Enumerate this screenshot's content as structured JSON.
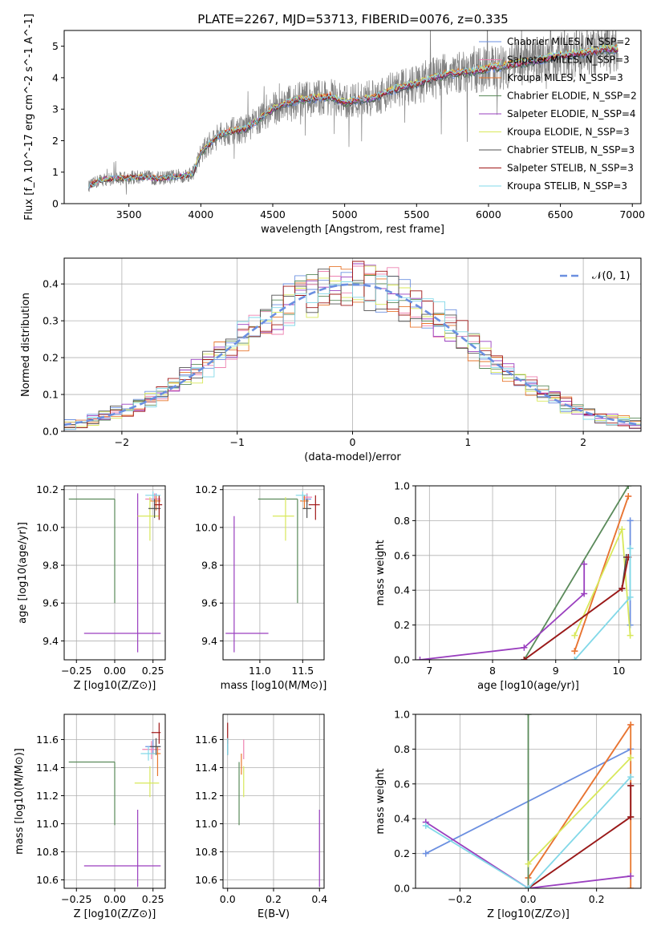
{
  "figure": {
    "title": "PLATE=2267, MJD=53713, FIBERID=0076, z=0.335"
  },
  "series_styles": [
    {
      "name": "Chabrier MILES, N_SSP=2",
      "color": "#6b8fe0"
    },
    {
      "name": "Salpeter MILES, N_SSP=3",
      "color": "#ee82b0"
    },
    {
      "name": "Kroupa MILES, N_SSP=3",
      "color": "#e8772e"
    },
    {
      "name": "Chabrier ELODIE, N_SSP=2",
      "color": "#5a8a5a"
    },
    {
      "name": "Salpeter ELODIE, N_SSP=4",
      "color": "#9a3fbf"
    },
    {
      "name": "Kroupa ELODIE, N_SSP=3",
      "color": "#d8e85a"
    },
    {
      "name": "Chabrier STELIB, N_SSP=3",
      "color": "#505050"
    },
    {
      "name": "Salpeter STELIB, N_SSP=3",
      "color": "#a01818"
    },
    {
      "name": "Kroupa STELIB, N_SSP=3",
      "color": "#82d8e8"
    }
  ],
  "chart_data": [
    {
      "id": "spectrum",
      "type": "line",
      "title": "PLATE=2267, MJD=53713, FIBERID=0076, z=0.335",
      "xlabel": "wavelength [Angstrom, rest frame]",
      "ylabel": "Flux [f_λ 10^-17 erg cm^-2 s^-1 A^-1]",
      "xlim": [
        3050,
        7060
      ],
      "ylim": [
        0,
        5.5
      ],
      "xticks": [
        3500,
        4000,
        4500,
        5000,
        5500,
        6000,
        6500,
        7000
      ],
      "yticks": [
        0,
        1,
        2,
        3,
        4,
        5
      ],
      "legend": "right",
      "data_color": "#808080",
      "model_shape": {
        "x": [
          3220,
          3300,
          3400,
          3500,
          3600,
          3700,
          3800,
          3900,
          3950,
          4000,
          4100,
          4200,
          4300,
          4400,
          4500,
          4600,
          4700,
          4800,
          4900,
          5000,
          5100,
          5200,
          5300,
          5400,
          5500,
          5600,
          5700,
          5800,
          5900,
          6000,
          6100,
          6200,
          6300,
          6400,
          6500,
          6600,
          6700,
          6800
        ],
        "y": [
          0.55,
          0.75,
          0.8,
          0.82,
          0.85,
          0.8,
          0.85,
          0.9,
          1.0,
          1.6,
          2.1,
          2.3,
          2.35,
          2.65,
          3.0,
          3.2,
          3.3,
          3.35,
          3.4,
          3.2,
          3.3,
          3.35,
          3.55,
          3.7,
          3.8,
          3.95,
          4.1,
          4.15,
          4.2,
          4.3,
          4.35,
          4.45,
          4.5,
          4.6,
          4.7,
          4.75,
          4.8,
          4.9
        ]
      }
    },
    {
      "id": "residuals",
      "type": "histogram",
      "xlabel": "(data-model)/error",
      "ylabel": "Normed distribution",
      "xlim": [
        -2.5,
        2.5
      ],
      "ylim": [
        0,
        0.47
      ],
      "xticks": [
        -2,
        -1,
        0,
        1,
        2
      ],
      "xticklabels": [
        "−2",
        "−1",
        "0",
        "1",
        "2"
      ],
      "yticks": [
        0.0,
        0.1,
        0.2,
        0.3,
        0.4
      ],
      "yticklabels": [
        "0.0",
        "0.1",
        "0.2",
        "0.3",
        "0.4"
      ],
      "grid": true,
      "legend": "top-right",
      "reference_curve": {
        "name": "𝒩(0, 1)",
        "color": "#6b8fe0",
        "style": "dashed"
      },
      "bin_width": 0.1
    },
    {
      "id": "age-vs-Z",
      "type": "scatter",
      "xlabel": "Z [log10(Z/Z⊙)]",
      "ylabel": "age [log10(age/yr)]",
      "xlim": [
        -0.33,
        0.33
      ],
      "ylim": [
        9.3,
        10.22
      ],
      "xticks": [
        -0.25,
        0.0,
        0.25
      ],
      "xticklabels": [
        "−0.25",
        "0.00",
        "0.25"
      ],
      "yticks": [
        9.4,
        9.6,
        9.8,
        10.0,
        10.2
      ],
      "yticklabels": [
        "9.4",
        "9.6",
        "9.8",
        "10.0",
        "10.2"
      ],
      "grid": true,
      "points": [
        {
          "series": 0,
          "x": 0.27,
          "y": 10.15,
          "xerr": [
            0.03,
            0.03
          ],
          "yerr": [
            0.03,
            0.03
          ]
        },
        {
          "series": 1,
          "x": 0.26,
          "y": 10.15,
          "xerr": [
            0.06,
            0.04
          ],
          "yerr": [
            0.04,
            0.03
          ]
        },
        {
          "series": 2,
          "x": 0.27,
          "y": 10.14,
          "xerr": [
            0.04,
            0.03
          ],
          "yerr": [
            0.05,
            0.03
          ]
        },
        {
          "series": 3,
          "x": 0.0,
          "y": 10.15,
          "xerr": [
            0.3,
            0.0
          ],
          "yerr": [
            0.55,
            0.0
          ]
        },
        {
          "series": 4,
          "x": 0.15,
          "y": 9.44,
          "xerr": [
            0.35,
            0.15
          ],
          "yerr": [
            0.1,
            0.74
          ]
        },
        {
          "series": 5,
          "x": 0.23,
          "y": 10.06,
          "xerr": [
            0.08,
            0.06
          ],
          "yerr": [
            0.13,
            0.1
          ]
        },
        {
          "series": 6,
          "x": 0.26,
          "y": 10.1,
          "xerr": [
            0.04,
            0.04
          ],
          "yerr": [
            0.05,
            0.05
          ]
        },
        {
          "series": 7,
          "x": 0.29,
          "y": 10.12,
          "xerr": [
            0.03,
            0.02
          ],
          "yerr": [
            0.08,
            0.05
          ]
        },
        {
          "series": 8,
          "x": 0.25,
          "y": 10.17,
          "xerr": [
            0.05,
            0.05
          ],
          "yerr": [
            0.03,
            0.02
          ]
        }
      ]
    },
    {
      "id": "age-vs-mass",
      "type": "scatter",
      "xlabel": "mass [log10(M/M⊙)]",
      "ylabel": "",
      "xlim": [
        10.57,
        11.75
      ],
      "ylim": [
        9.3,
        10.22
      ],
      "xticks": [
        11.0,
        11.5
      ],
      "xticklabels": [
        "11.0",
        "11.5"
      ],
      "yticks": [
        9.4,
        9.6,
        9.8,
        10.0,
        10.2
      ],
      "yticklabels": [
        "9.4",
        "9.6",
        "9.8",
        "10.0",
        "10.2"
      ],
      "grid": true,
      "points": [
        {
          "series": 0,
          "x": 11.55,
          "y": 10.15,
          "xerr": [
            0.05,
            0.05
          ],
          "yerr": [
            0.03,
            0.03
          ]
        },
        {
          "series": 1,
          "x": 11.55,
          "y": 10.16,
          "xerr": [
            0.05,
            0.06
          ],
          "yerr": [
            0.03,
            0.02
          ]
        },
        {
          "series": 2,
          "x": 11.52,
          "y": 10.14,
          "xerr": [
            0.05,
            0.05
          ],
          "yerr": [
            0.04,
            0.03
          ]
        },
        {
          "series": 3,
          "x": 11.44,
          "y": 10.15,
          "xerr": [
            0.46,
            0.0
          ],
          "yerr": [
            0.55,
            0.0
          ]
        },
        {
          "series": 4,
          "x": 10.7,
          "y": 9.44,
          "xerr": [
            0.1,
            0.4
          ],
          "yerr": [
            0.1,
            0.62
          ]
        },
        {
          "series": 5,
          "x": 11.3,
          "y": 10.06,
          "xerr": [
            0.15,
            0.1
          ],
          "yerr": [
            0.13,
            0.1
          ]
        },
        {
          "series": 6,
          "x": 11.55,
          "y": 10.1,
          "xerr": [
            0.05,
            0.05
          ],
          "yerr": [
            0.05,
            0.05
          ]
        },
        {
          "series": 7,
          "x": 11.65,
          "y": 10.12,
          "xerr": [
            0.08,
            0.05
          ],
          "yerr": [
            0.08,
            0.05
          ]
        },
        {
          "series": 8,
          "x": 11.5,
          "y": 10.17,
          "xerr": [
            0.08,
            0.06
          ],
          "yerr": [
            0.03,
            0.02
          ]
        }
      ]
    },
    {
      "id": "weight-vs-age",
      "type": "line",
      "xlabel": "age [log10(age/yr)]",
      "ylabel": "mass weight",
      "xlim": [
        6.78,
        10.35
      ],
      "ylim": [
        0.0,
        1.0
      ],
      "xticks": [
        7,
        8,
        9,
        10
      ],
      "xticklabels": [
        "7",
        "8",
        "9",
        "10"
      ],
      "yticks": [
        0.0,
        0.2,
        0.4,
        0.6,
        0.8,
        1.0
      ],
      "yticklabels": [
        "0.0",
        "0.2",
        "0.4",
        "0.6",
        "0.8",
        "1.0"
      ],
      "grid": true,
      "series": [
        {
          "series": 0,
          "x": [
            10.18,
            10.18
          ],
          "y": [
            0.2,
            0.8
          ]
        },
        {
          "series": 1,
          "x": [
            9.3,
            10.15
          ],
          "y": [
            0.05,
            0.94
          ]
        },
        {
          "series": 2,
          "x": [
            9.3,
            10.15
          ],
          "y": [
            0.05,
            0.94
          ]
        },
        {
          "series": 3,
          "x": [
            8.5,
            10.15
          ],
          "y": [
            0.0,
            1.0
          ]
        },
        {
          "series": 4,
          "x": [
            6.85,
            8.5,
            9.45,
            9.45
          ],
          "y": [
            0.0,
            0.07,
            0.38,
            0.55
          ]
        },
        {
          "series": 5,
          "x": [
            9.3,
            10.05,
            10.18
          ],
          "y": [
            0.14,
            0.75,
            0.14
          ]
        },
        {
          "series": 6,
          "x": [
            8.5,
            10.05,
            10.12
          ],
          "y": [
            0.0,
            0.41,
            0.59
          ]
        },
        {
          "series": 7,
          "x": [
            8.5,
            10.05,
            10.15
          ],
          "y": [
            0.0,
            0.41,
            0.59
          ]
        },
        {
          "series": 8,
          "x": [
            9.3,
            10.18,
            10.18
          ],
          "y": [
            0.0,
            0.36,
            0.64
          ]
        }
      ]
    },
    {
      "id": "mass-vs-Z",
      "type": "scatter",
      "xlabel": "Z [log10(Z/Z⊙)]",
      "ylabel": "mass [log10(M/M⊙)]",
      "xlim": [
        -0.33,
        0.33
      ],
      "ylim": [
        10.54,
        11.78
      ],
      "xticks": [
        -0.25,
        0.0,
        0.25
      ],
      "xticklabels": [
        "−0.25",
        "0.00",
        "0.25"
      ],
      "yticks": [
        10.6,
        10.8,
        11.0,
        11.2,
        11.4,
        11.6
      ],
      "yticklabels": [
        "10.6",
        "10.8",
        "11.0",
        "11.2",
        "11.4",
        "11.6"
      ],
      "grid": true,
      "points": [
        {
          "series": 0,
          "x": 0.25,
          "y": 11.55,
          "xerr": [
            0.05,
            0.05
          ],
          "yerr": [
            0.05,
            0.05
          ]
        },
        {
          "series": 1,
          "x": 0.24,
          "y": 11.53,
          "xerr": [
            0.06,
            0.06
          ],
          "yerr": [
            0.07,
            0.06
          ]
        },
        {
          "series": 2,
          "x": 0.28,
          "y": 11.5,
          "xerr": [
            0.04,
            0.02
          ],
          "yerr": [
            0.16,
            0.05
          ]
        },
        {
          "series": 3,
          "x": 0.0,
          "y": 11.44,
          "xerr": [
            0.3,
            0.0
          ],
          "yerr": [
            0.45,
            0.0
          ]
        },
        {
          "series": 4,
          "x": 0.15,
          "y": 10.7,
          "xerr": [
            0.35,
            0.15
          ],
          "yerr": [
            0.15,
            0.4
          ]
        },
        {
          "series": 5,
          "x": 0.23,
          "y": 11.29,
          "xerr": [
            0.1,
            0.06
          ],
          "yerr": [
            0.1,
            0.12
          ]
        },
        {
          "series": 6,
          "x": 0.27,
          "y": 11.55,
          "xerr": [
            0.04,
            0.03
          ],
          "yerr": [
            0.06,
            0.06
          ]
        },
        {
          "series": 7,
          "x": 0.29,
          "y": 11.65,
          "xerr": [
            0.05,
            0.01
          ],
          "yerr": [
            0.08,
            0.07
          ]
        },
        {
          "series": 8,
          "x": 0.22,
          "y": 11.5,
          "xerr": [
            0.05,
            0.05
          ],
          "yerr": [
            0.05,
            0.05
          ]
        }
      ]
    },
    {
      "id": "mass-vs-EBV",
      "type": "scatter",
      "xlabel": "E(B-V)",
      "ylabel": "",
      "xlim": [
        -0.02,
        0.42
      ],
      "ylim": [
        10.54,
        11.78
      ],
      "xticks": [
        0.0,
        0.2,
        0.4
      ],
      "xticklabels": [
        "0.0",
        "0.2",
        "0.4"
      ],
      "yticks": [
        10.6,
        10.8,
        11.0,
        11.2,
        11.4,
        11.6
      ],
      "yticklabels": [
        "10.6",
        "10.8",
        "11.0",
        "11.2",
        "11.4",
        "11.6"
      ],
      "grid": true,
      "points": [
        {
          "series": 0,
          "x": 0.0,
          "y": 11.55,
          "xerr": [
            0.0,
            0.0
          ],
          "yerr": [
            0.05,
            0.05
          ]
        },
        {
          "series": 1,
          "x": 0.07,
          "y": 11.53,
          "xerr": [
            0.0,
            0.0
          ],
          "yerr": [
            0.07,
            0.07
          ]
        },
        {
          "series": 2,
          "x": 0.06,
          "y": 11.45,
          "xerr": [
            0.0,
            0.0
          ],
          "yerr": [
            0.1,
            0.05
          ]
        },
        {
          "series": 3,
          "x": 0.05,
          "y": 11.44,
          "xerr": [
            0.0,
            0.0
          ],
          "yerr": [
            0.45,
            0.0
          ]
        },
        {
          "series": 4,
          "x": 0.4,
          "y": 10.7,
          "xerr": [
            0.0,
            0.0
          ],
          "yerr": [
            0.15,
            0.4
          ]
        },
        {
          "series": 5,
          "x": 0.07,
          "y": 11.29,
          "xerr": [
            0.0,
            0.0
          ],
          "yerr": [
            0.1,
            0.12
          ]
        },
        {
          "series": 6,
          "x": 0.0,
          "y": 11.55,
          "xerr": [
            0.0,
            0.0
          ],
          "yerr": [
            0.06,
            0.06
          ]
        },
        {
          "series": 7,
          "x": 0.0,
          "y": 11.65,
          "xerr": [
            0.0,
            0.0
          ],
          "yerr": [
            0.08,
            0.07
          ]
        },
        {
          "series": 8,
          "x": 0.0,
          "y": 11.55,
          "xerr": [
            0.0,
            0.0
          ],
          "yerr": [
            0.06,
            0.06
          ]
        }
      ]
    },
    {
      "id": "weight-vs-Z",
      "type": "line",
      "xlabel": "Z [log10(Z/Z⊙)]",
      "ylabel": "mass weight",
      "xlim": [
        -0.33,
        0.33
      ],
      "ylim": [
        0.0,
        1.0
      ],
      "xticks": [
        -0.2,
        0.0,
        0.2
      ],
      "xticklabels": [
        "−0.2",
        "0.0",
        "0.2"
      ],
      "yticks": [
        0.0,
        0.2,
        0.4,
        0.6,
        0.8,
        1.0
      ],
      "yticklabels": [
        "0.0",
        "0.2",
        "0.4",
        "0.6",
        "0.8",
        "1.0"
      ],
      "grid": true,
      "series": [
        {
          "series": 0,
          "x": [
            -0.3,
            0.3
          ],
          "y": [
            0.2,
            0.8
          ]
        },
        {
          "series": 1,
          "x": [
            0.0,
            0.3
          ],
          "y": [
            0.06,
            0.94
          ]
        },
        {
          "series": 2,
          "x": [
            0.0,
            0.3,
            0.3
          ],
          "y": [
            0.06,
            0.94,
            0.0
          ]
        },
        {
          "series": 3,
          "x": [
            0.0,
            0.0
          ],
          "y": [
            0.0,
            1.0
          ]
        },
        {
          "series": 4,
          "x": [
            -0.3,
            0.0,
            0.3
          ],
          "y": [
            0.38,
            0.0,
            0.07
          ]
        },
        {
          "series": 5,
          "x": [
            0.0,
            0.3
          ],
          "y": [
            0.14,
            0.75
          ]
        },
        {
          "series": 6,
          "x": [
            0.0,
            0.3,
            0.3
          ],
          "y": [
            0.0,
            0.41,
            0.59
          ]
        },
        {
          "series": 7,
          "x": [
            0.0,
            0.3,
            0.3
          ],
          "y": [
            0.0,
            0.41,
            0.59
          ]
        },
        {
          "series": 8,
          "x": [
            -0.3,
            0.0,
            0.3
          ],
          "y": [
            0.36,
            0.0,
            0.64
          ]
        }
      ]
    }
  ]
}
